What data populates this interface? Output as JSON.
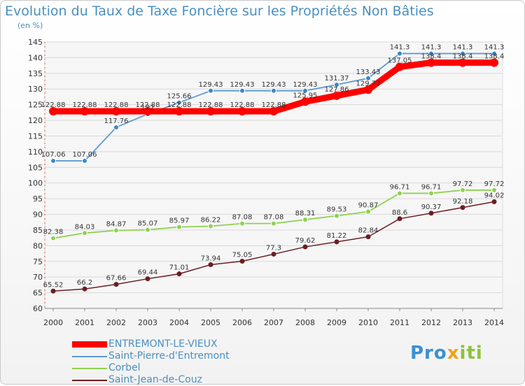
{
  "title": "Evolution du Taux de Taxe Foncière sur les Propriétés Non Bâties",
  "unit_label": "(en %)",
  "logo": {
    "part1": "Pro",
    "part2": "x",
    "part3": "iti"
  },
  "chart_data": {
    "type": "line",
    "title": "Evolution du Taux de Taxe Foncière sur les Propriétés Non Bâties",
    "ylabel": "(en %)",
    "xlabel": "",
    "ylim": [
      60,
      145
    ],
    "yticks": [
      60,
      65,
      70,
      75,
      80,
      85,
      90,
      95,
      100,
      105,
      110,
      115,
      120,
      125,
      130,
      135,
      140,
      145
    ],
    "grid": true,
    "legend_position": "bottom-left",
    "x": [
      "2000",
      "2001",
      "2002",
      "2003",
      "2004",
      "2005",
      "2006",
      "2007",
      "2008",
      "2009",
      "2010",
      "2011",
      "2012",
      "2013",
      "2014"
    ],
    "series": [
      {
        "name": "ENTREMONT-LE-VIEUX",
        "color": "#ff0000",
        "values": [
          122.88,
          122.88,
          122.88,
          122.88,
          122.88,
          122.88,
          122.88,
          122.88,
          125.95,
          127.86,
          129.77,
          137.05,
          138.4,
          138.4,
          138.4
        ],
        "labels": [
          "122.88",
          "122.88",
          "122.88",
          "122.88",
          "122.88",
          "122.88",
          "122.88",
          "122.88",
          "125.95",
          "127.86",
          "129.77",
          "137.05",
          "138.4",
          "138.4",
          "138.4"
        ]
      },
      {
        "name": "Saint-Pierre-d'Entremont",
        "color": "#5b9bd5",
        "values": [
          107.06,
          107.06,
          117.76,
          122,
          125.66,
          129.43,
          129.43,
          129.43,
          129.43,
          131.37,
          133.43,
          141.3,
          141.3,
          141.3,
          141.3
        ],
        "labels": [
          "107.06",
          "107.06",
          "117.76",
          "122",
          "125.66",
          "129.43",
          "129.43",
          "129.43",
          "129.43",
          "131.37",
          "133.43",
          "141.3",
          "141.3",
          "141.3",
          "141.3"
        ]
      },
      {
        "name": "Corbel",
        "color": "#8fd14f",
        "values": [
          82.38,
          84.03,
          84.87,
          85.07,
          85.97,
          86.22,
          87.08,
          87.08,
          88.31,
          89.53,
          90.87,
          96.71,
          96.71,
          97.72,
          97.72
        ],
        "labels": [
          "82.38",
          "84.03",
          "84.87",
          "85.07",
          "85.97",
          "86.22",
          "87.08",
          "87.08",
          "88.31",
          "89.53",
          "90.87",
          "96.71",
          "96.71",
          "97.72",
          "97.72"
        ]
      },
      {
        "name": "Saint-Jean-de-Couz",
        "color": "#6b1e23",
        "values": [
          65.52,
          66.2,
          67.66,
          69.44,
          71.01,
          73.94,
          75.05,
          77.3,
          79.62,
          81.22,
          82.84,
          88.6,
          90.37,
          92.18,
          94.02
        ],
        "labels": [
          "65.52",
          "66.2",
          "67.66",
          "69.44",
          "71.01",
          "73.94",
          "75.05",
          "77.3",
          "79.62",
          "81.22",
          "82.84",
          "88.6",
          "90.37",
          "92.18",
          "94.02"
        ]
      }
    ]
  }
}
